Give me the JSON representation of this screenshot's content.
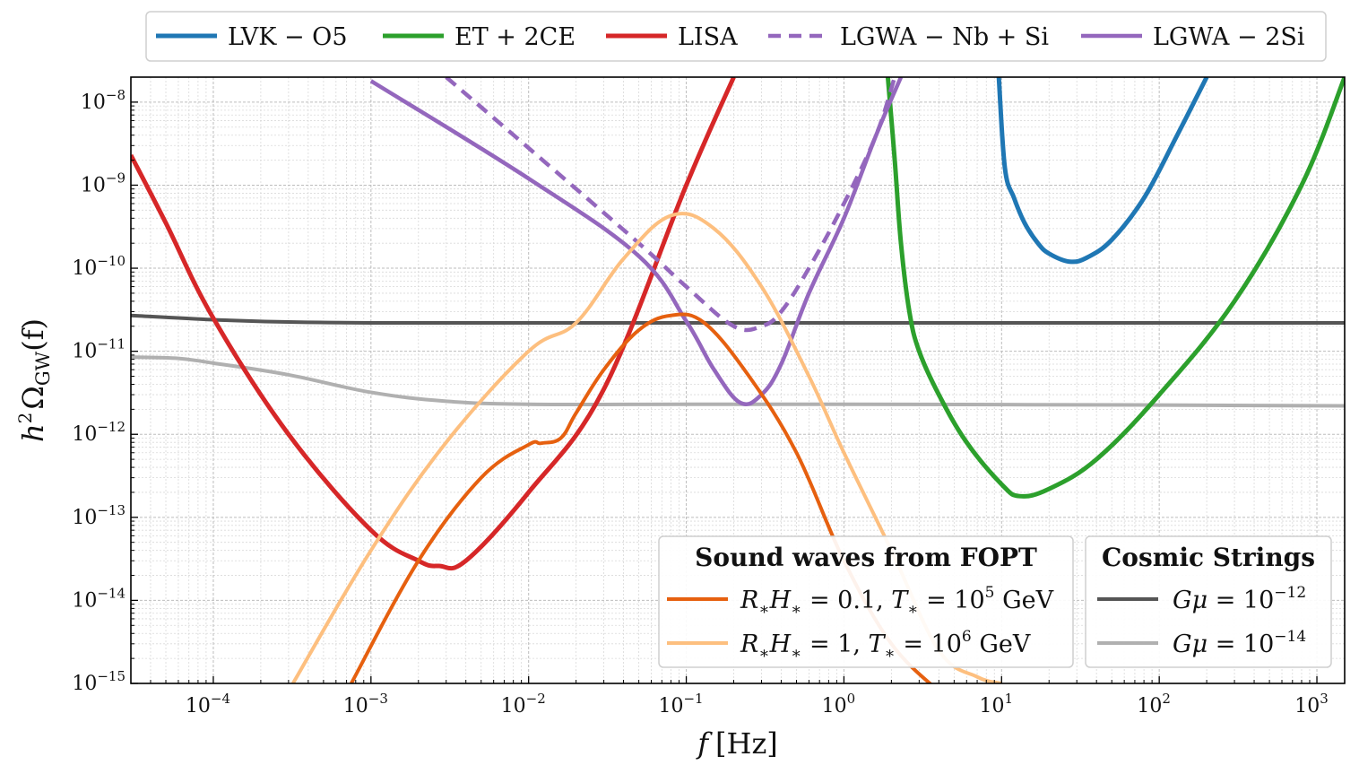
{
  "chart_data": {
    "type": "line",
    "title": "",
    "xscale": "log",
    "yscale": "log",
    "xlim": [
      3e-05,
      1500
    ],
    "ylim": [
      1e-15,
      2e-08
    ],
    "grid": true,
    "xlabel": {
      "text": "f [Hz]",
      "italic": "f",
      "rest": "[Hz]"
    },
    "ylabel": {
      "text": "h²Ω_GW(f)",
      "h": "h",
      "hexp": "2",
      "omega": "Ω",
      "sub": "GW",
      "args": "(f)"
    },
    "x_ticks": [
      {
        "base": "10",
        "exp": "−4",
        "value": 0.0001
      },
      {
        "base": "10",
        "exp": "−3",
        "value": 0.001
      },
      {
        "base": "10",
        "exp": "−2",
        "value": 0.01
      },
      {
        "base": "10",
        "exp": "−1",
        "value": 0.1
      },
      {
        "base": "10",
        "exp": "0",
        "value": 1
      },
      {
        "base": "10",
        "exp": "1",
        "value": 10
      },
      {
        "base": "10",
        "exp": "2",
        "value": 100
      },
      {
        "base": "10",
        "exp": "3",
        "value": 1000
      }
    ],
    "y_ticks": [
      {
        "base": "10",
        "exp": "−15",
        "value": 1e-15
      },
      {
        "base": "10",
        "exp": "−14",
        "value": 1e-14
      },
      {
        "base": "10",
        "exp": "−13",
        "value": 1e-13
      },
      {
        "base": "10",
        "exp": "−12",
        "value": 1e-12
      },
      {
        "base": "10",
        "exp": "−11",
        "value": 1e-11
      },
      {
        "base": "10",
        "exp": "−10",
        "value": 1e-10
      },
      {
        "base": "10",
        "exp": "−9",
        "value": 1e-09
      },
      {
        "base": "10",
        "exp": "−8",
        "value": 1e-08
      }
    ],
    "legend_top": {
      "placement": "top-outside",
      "entries": [
        {
          "label": "LVK − O5",
          "series": "lvk"
        },
        {
          "label": "ET + 2CE",
          "series": "et"
        },
        {
          "label": "LISA",
          "series": "lisa"
        },
        {
          "label": "LGWA − Nb + Si",
          "series": "lgwa_nbsi"
        },
        {
          "label": "LGWA − 2Si",
          "series": "lgwa_2si"
        }
      ]
    },
    "legend_fopt": {
      "placement": "lower-center",
      "title": "Sound waves from FOPT",
      "entries": [
        {
          "label": "R∗H∗ = 0.1, T∗ = 10⁵ GeV",
          "parts": [
            "R",
            "∗",
            "H",
            "∗",
            " = 0.1, ",
            "T",
            "∗",
            " = 10",
            "5",
            " GeV"
          ],
          "series": "fopt1"
        },
        {
          "label": "R∗H∗ = 1, T∗ = 10⁶ GeV",
          "parts": [
            "R",
            "∗",
            "H",
            "∗",
            " = 1, ",
            "T",
            "∗",
            " = 10",
            "6",
            " GeV"
          ],
          "series": "fopt2"
        }
      ]
    },
    "legend_cs": {
      "placement": "lower-right",
      "title": "Cosmic Strings",
      "entries": [
        {
          "label": "Gμ = 10⁻¹²",
          "lhs": "Gμ",
          "eq": " = 10",
          "exp": "−12",
          "series": "cs12"
        },
        {
          "label": "Gμ = 10⁻¹⁴",
          "lhs": "Gμ",
          "eq": " = 10",
          "exp": "−14",
          "series": "cs14"
        }
      ]
    },
    "series": [
      {
        "id": "cs12",
        "name": "Gμ = 10⁻¹²",
        "color": "#555555",
        "width": 4,
        "dash": "",
        "x": [
          3e-05,
          0.0001,
          0.0003,
          0.001,
          0.01,
          1,
          1500
        ],
        "y": [
          2.7e-11,
          2.4e-11,
          2.25e-11,
          2.2e-11,
          2.2e-11,
          2.2e-11,
          2.2e-11
        ]
      },
      {
        "id": "cs14",
        "name": "Gμ = 10⁻¹⁴",
        "color": "#b0b0b0",
        "width": 4,
        "dash": "",
        "x": [
          3e-05,
          6e-05,
          0.0001,
          0.0003,
          0.001,
          0.003,
          0.01,
          0.1,
          1,
          100,
          1500
        ],
        "y": [
          8.5e-12,
          8.2e-12,
          7.2e-12,
          5.2e-12,
          3.2e-12,
          2.5e-12,
          2.3e-12,
          2.3e-12,
          2.3e-12,
          2.25e-12,
          2.2e-12
        ]
      },
      {
        "id": "lvk",
        "name": "LVK − O5",
        "color": "#1f77b4",
        "width": 5,
        "dash": "",
        "x": [
          9.6,
          10.5,
          12,
          14,
          17,
          20,
          27,
          35,
          50,
          80,
          130,
          200
        ],
        "y": [
          2e-08,
          1.6e-09,
          7e-10,
          3.5e-10,
          2e-10,
          1.5e-10,
          1.2e-10,
          1.35e-10,
          2.2e-10,
          7e-10,
          4e-09,
          2e-08
        ]
      },
      {
        "id": "et",
        "name": "ET + 2CE",
        "color": "#2ca02c",
        "width": 5,
        "dash": "",
        "x": [
          1.9,
          2.1,
          2.3,
          2.6,
          3,
          4,
          6,
          10,
          13,
          20,
          40,
          100,
          300,
          800,
          1500
        ],
        "y": [
          2e-08,
          2e-09,
          2e-10,
          3e-11,
          1e-11,
          3e-12,
          8e-13,
          2.5e-13,
          1.8e-13,
          2.2e-13,
          5e-13,
          3e-12,
          4e-11,
          1e-09,
          2e-08
        ]
      },
      {
        "id": "lisa",
        "name": "LISA",
        "color": "#d62728",
        "width": 5,
        "dash": "",
        "x": [
          3e-05,
          5e-05,
          0.0001,
          0.0003,
          0.001,
          0.002,
          0.0027,
          0.004,
          0.01,
          0.03,
          0.1,
          0.2
        ],
        "y": [
          2.3e-09,
          3.5e-10,
          2.5e-11,
          1e-12,
          7e-14,
          3e-14,
          2.6e-14,
          3e-14,
          2e-13,
          3.5e-12,
          1e-09,
          2e-08
        ]
      },
      {
        "id": "lgwa_2si",
        "name": "LGWA − 2Si",
        "color": "#9467bd",
        "width": 4.5,
        "dash": "",
        "x": [
          0.001,
          0.01,
          0.05,
          0.1,
          0.15,
          0.22,
          0.3,
          0.4,
          0.6,
          1,
          1.6,
          2.3
        ],
        "y": [
          1.8e-08,
          1.2e-09,
          1.4e-10,
          2.3e-11,
          6e-12,
          2.4e-12,
          3e-12,
          7e-12,
          5e-11,
          4e-10,
          4e-09,
          2e-08
        ]
      },
      {
        "id": "lgwa_nbsi",
        "name": "LGWA − Nb + Si",
        "color": "#9467bd",
        "width": 4.5,
        "dash": "14 9",
        "x": [
          0.003,
          0.01,
          0.05,
          0.1,
          0.2,
          0.3,
          0.4,
          0.6,
          1,
          1.6,
          2.1
        ],
        "y": [
          2e-08,
          2.8e-09,
          2e-10,
          6e-11,
          2e-11,
          2e-11,
          3e-11,
          1e-10,
          6e-10,
          4e-09,
          2e-08
        ]
      },
      {
        "id": "fopt2",
        "name": "R∗H∗ = 1, T∗ = 10⁶ GeV",
        "color": "#fdbf7f",
        "width": 4,
        "dash": "",
        "x": [
          0.00032,
          0.001,
          0.003,
          0.01,
          0.02,
          0.04,
          0.08,
          0.15,
          0.3,
          0.6,
          1,
          2,
          4,
          7,
          10
        ],
        "y": [
          1e-15,
          4e-14,
          8e-13,
          1e-11,
          2.2e-11,
          1.3e-10,
          4.3e-10,
          3e-10,
          6e-11,
          5e-12,
          6e-13,
          4e-14,
          2.5e-15,
          1.2e-15,
          1e-15
        ]
      },
      {
        "id": "fopt1",
        "name": "R∗H∗ = 0.1, T∗ = 10⁵ GeV",
        "color": "#e6600f",
        "width": 4,
        "dash": "",
        "x": [
          0.00075,
          0.002,
          0.005,
          0.01,
          0.012,
          0.016,
          0.02,
          0.03,
          0.05,
          0.08,
          0.13,
          0.25,
          0.5,
          1,
          2,
          4
        ],
        "y": [
          1e-15,
          3e-14,
          3e-13,
          7.5e-13,
          7.8e-13,
          9e-13,
          1.8e-12,
          6e-12,
          1.8e-11,
          2.7e-11,
          2.2e-11,
          5e-12,
          6e-13,
          3e-14,
          3e-15,
          8e-16
        ]
      }
    ]
  }
}
